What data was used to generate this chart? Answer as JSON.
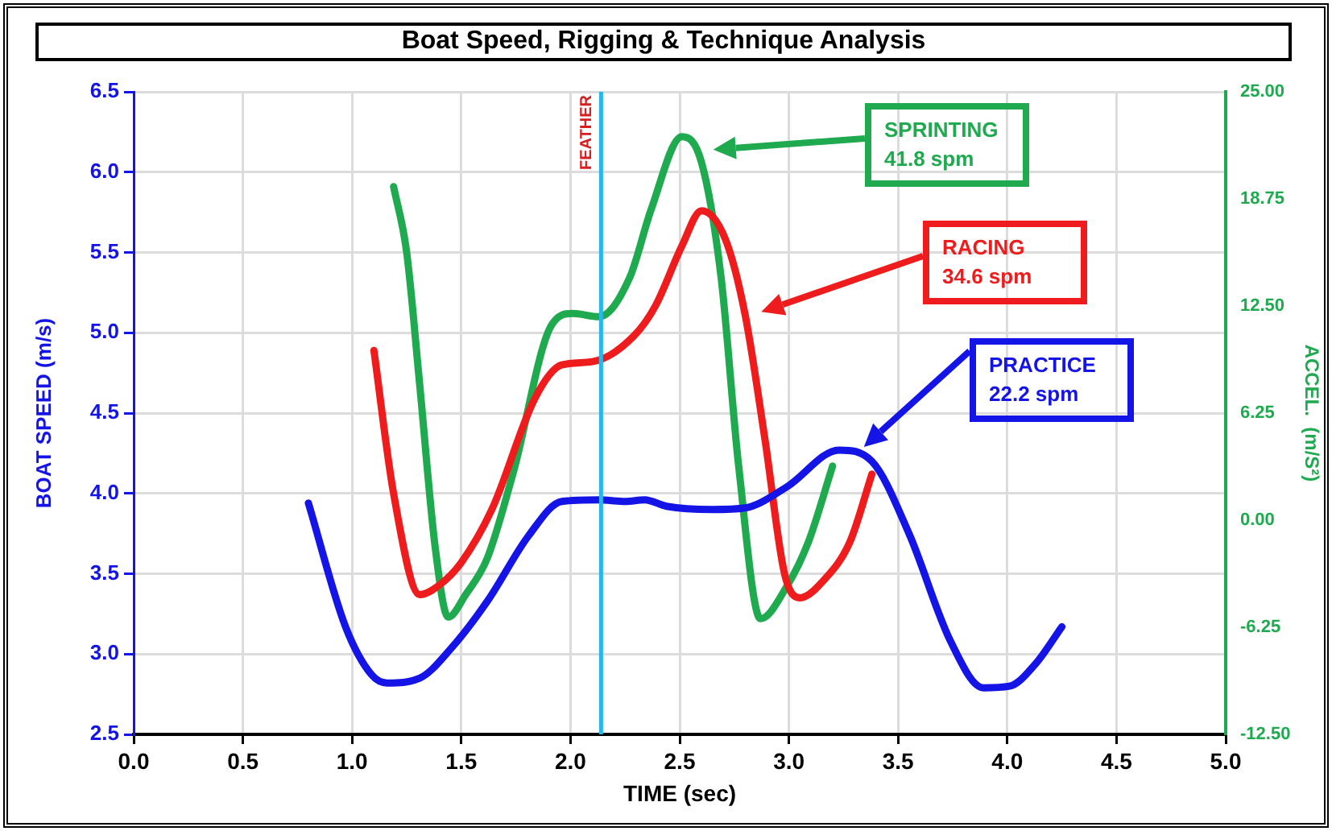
{
  "chart_data": {
    "type": "line",
    "title": "Boat Speed, Rigging & Technique Analysis",
    "xlabel": "TIME (sec)",
    "ylabel": "BOAT SPEED (m/s)",
    "y2label": "ACCEL.  (m/S²)",
    "xlim": [
      0,
      5
    ],
    "xticks": [
      {
        "value": 0,
        "label": "0.0"
      },
      {
        "value": 0.5,
        "label": "0.5"
      },
      {
        "value": 1,
        "label": "1.0"
      },
      {
        "value": 1.5,
        "label": "1.5"
      },
      {
        "value": 2,
        "label": "2.0"
      },
      {
        "value": 2.5,
        "label": "2.5"
      },
      {
        "value": 3,
        "label": "3.0"
      },
      {
        "value": 3.5,
        "label": "3.5"
      },
      {
        "value": 4,
        "label": "4.0"
      },
      {
        "value": 4.5,
        "label": "4.5"
      },
      {
        "value": 5,
        "label": "5.0"
      }
    ],
    "ylim": [
      2.5,
      6.5
    ],
    "yticks": [
      2.5,
      {
        "value": 3,
        "label": "3.0"
      },
      3.5,
      {
        "value": 4,
        "label": "4.0"
      },
      4.5,
      {
        "value": 5,
        "label": "5.0"
      },
      5.5,
      {
        "value": 6,
        "label": "6.0"
      },
      6.5
    ],
    "y2lim": [
      -12.5,
      25
    ],
    "y2ticks": [
      {
        "value": -12.5,
        "label": "-12.50"
      },
      -6.25,
      {
        "value": 0,
        "label": "0.00"
      },
      6.25,
      {
        "value": 12.5,
        "label": "12.50"
      },
      18.75,
      {
        "value": 25,
        "label": "25.00"
      }
    ],
    "grid": true,
    "legend": false,
    "line_style": "solid",
    "marker": "none",
    "ref_lines": [
      {
        "axis": "x",
        "value": 2.14,
        "label": "FEATHER",
        "color": "#29b6e8"
      }
    ],
    "series": [
      {
        "name": "PRACTICE 22.2 spm",
        "color": "#1414e6",
        "x": [
          0.8,
          0.97,
          1.09,
          1.16,
          1.31,
          1.45,
          1.62,
          1.81,
          1.96,
          2.13,
          2.25,
          2.34,
          2.44,
          2.65,
          2.8,
          2.99,
          3.23,
          3.38,
          3.55,
          3.74,
          3.89,
          4.01,
          4.13,
          4.25
        ],
        "values": [
          3.94,
          3.17,
          2.87,
          2.82,
          2.85,
          3.03,
          3.33,
          3.74,
          3.95,
          3.96,
          3.95,
          3.96,
          3.92,
          3.9,
          3.91,
          4.04,
          4.27,
          4.2,
          3.75,
          3.08,
          2.79,
          2.8,
          2.94,
          3.17
        ]
      },
      {
        "name": "RACING 34.6 spm",
        "color": "#ee1c1c",
        "x": [
          1.1,
          1.19,
          1.31,
          1.4,
          1.5,
          1.64,
          1.84,
          1.96,
          2.1,
          2.29,
          2.39,
          2.51,
          2.6,
          2.71,
          2.8,
          2.89,
          2.98,
          3.05,
          3.16,
          3.28,
          3.38
        ],
        "values": [
          4.89,
          4.0,
          3.37,
          3.43,
          3.57,
          3.9,
          4.6,
          4.8,
          4.82,
          4.98,
          5.17,
          5.54,
          5.76,
          5.58,
          5.11,
          4.34,
          3.5,
          3.35,
          3.46,
          3.7,
          4.12
        ]
      },
      {
        "name": "SPRINTING 41.8 spm",
        "color": "#1faa50",
        "x": [
          1.19,
          1.25,
          1.31,
          1.38,
          1.44,
          1.52,
          1.62,
          1.74,
          1.91,
          2.01,
          2.13,
          2.27,
          2.37,
          2.51,
          2.6,
          2.69,
          2.77,
          2.87,
          2.99,
          3.09,
          3.2
        ],
        "values": [
          5.91,
          5.5,
          4.67,
          3.67,
          3.23,
          3.37,
          3.6,
          4.14,
          5.04,
          5.12,
          5.1,
          5.34,
          5.77,
          6.22,
          6.06,
          5.34,
          4.17,
          3.22,
          3.42,
          3.7,
          4.17
        ]
      }
    ]
  }
}
